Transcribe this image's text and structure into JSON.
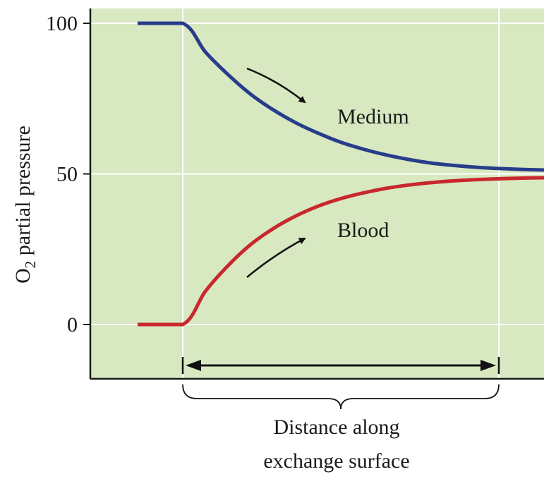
{
  "chart_data": {
    "type": "line",
    "ylabel_main": "O",
    "ylabel_sub": "2",
    "ylabel_rest": " partial pressure",
    "xlabel_line1": "Distance along",
    "xlabel_line2": "exchange surface",
    "yticks": [
      0,
      50,
      100
    ],
    "ylim": [
      -18,
      107
    ],
    "xlim": [
      0,
      10
    ],
    "grid": true,
    "colors": {
      "background": "#d8e8c0",
      "grid": "#ffffff",
      "axis": "#1a1a1a",
      "medium": "#283c8c",
      "blood": "#c8282d",
      "arrow": "#111111"
    },
    "exchange_start": 2,
    "exchange_end": 9,
    "series": [
      {
        "name": "Medium",
        "color_key": "medium",
        "x": [
          1,
          2,
          2.5,
          3,
          3.5,
          4,
          4.5,
          5,
          5.5,
          6,
          6.5,
          7,
          7.5,
          8,
          8.5,
          9,
          9.5,
          10
        ],
        "y": [
          100,
          100,
          90.5,
          83.0,
          76.5,
          71.3,
          67.0,
          63.5,
          60.5,
          58.2,
          56.3,
          54.8,
          53.6,
          52.8,
          52.2,
          51.8,
          51.5,
          51.3
        ]
      },
      {
        "name": "Blood",
        "color_key": "blood",
        "x": [
          1,
          2,
          2.5,
          3,
          3.5,
          4,
          4.5,
          5,
          5.5,
          6,
          6.5,
          7,
          7.5,
          8,
          8.5,
          9,
          9.5,
          10
        ],
        "y": [
          0,
          0,
          11.0,
          19.5,
          26.5,
          31.8,
          36.0,
          39.3,
          41.8,
          43.7,
          45.2,
          46.3,
          47.1,
          47.7,
          48.1,
          48.4,
          48.6,
          48.7
        ]
      }
    ]
  }
}
